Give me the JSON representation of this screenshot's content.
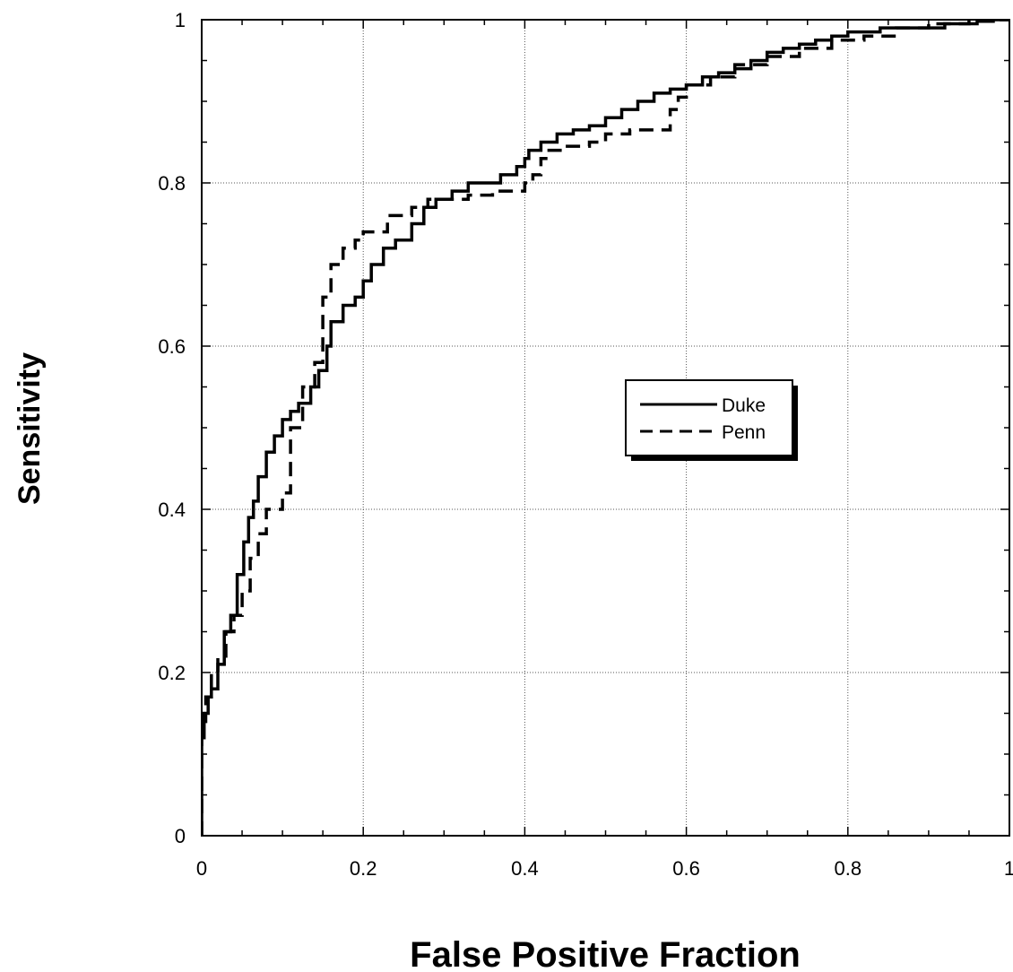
{
  "chart_data": {
    "type": "line",
    "title": "",
    "xlabel": "False Positive Fraction",
    "ylabel": "Sensitivity",
    "xlim": [
      0,
      1
    ],
    "ylim": [
      0,
      1
    ],
    "grid": true,
    "legend_position": "center-right",
    "x_ticks": [
      "0",
      "0.2",
      "0.4",
      "0.6",
      "0.8",
      "1"
    ],
    "y_ticks": [
      "0",
      "0.2",
      "0.4",
      "0.6",
      "0.8",
      "1"
    ],
    "series": [
      {
        "name": "Duke",
        "style": "solid",
        "color": "#000000",
        "x": [
          0,
          0,
          0.003,
          0.003,
          0.008,
          0.008,
          0.012,
          0.012,
          0.02,
          0.02,
          0.028,
          0.028,
          0.036,
          0.036,
          0.044,
          0.044,
          0.052,
          0.052,
          0.058,
          0.058,
          0.064,
          0.064,
          0.07,
          0.07,
          0.08,
          0.08,
          0.09,
          0.09,
          0.1,
          0.1,
          0.11,
          0.11,
          0.12,
          0.12,
          0.135,
          0.135,
          0.145,
          0.145,
          0.155,
          0.155,
          0.16,
          0.16,
          0.175,
          0.175,
          0.19,
          0.19,
          0.2,
          0.2,
          0.21,
          0.21,
          0.225,
          0.225,
          0.24,
          0.24,
          0.26,
          0.26,
          0.275,
          0.275,
          0.29,
          0.29,
          0.31,
          0.31,
          0.33,
          0.33,
          0.35,
          0.35,
          0.37,
          0.37,
          0.39,
          0.39,
          0.4,
          0.4,
          0.405,
          0.405,
          0.42,
          0.42,
          0.44,
          0.44,
          0.46,
          0.46,
          0.48,
          0.48,
          0.5,
          0.5,
          0.52,
          0.52,
          0.54,
          0.54,
          0.56,
          0.56,
          0.58,
          0.58,
          0.6,
          0.6,
          0.62,
          0.62,
          0.64,
          0.64,
          0.66,
          0.66,
          0.68,
          0.68,
          0.7,
          0.7,
          0.72,
          0.72,
          0.74,
          0.74,
          0.76,
          0.76,
          0.78,
          0.78,
          0.8,
          0.8,
          0.84,
          0.84,
          0.88,
          0.88,
          0.92,
          0.92,
          0.96,
          0.96,
          0.98,
          0.98,
          1.0
        ],
        "y": [
          0,
          0.12,
          0.12,
          0.15,
          0.15,
          0.17,
          0.17,
          0.18,
          0.18,
          0.21,
          0.21,
          0.25,
          0.25,
          0.27,
          0.27,
          0.32,
          0.32,
          0.36,
          0.36,
          0.39,
          0.39,
          0.41,
          0.41,
          0.44,
          0.44,
          0.47,
          0.47,
          0.49,
          0.49,
          0.51,
          0.51,
          0.52,
          0.52,
          0.53,
          0.53,
          0.55,
          0.55,
          0.57,
          0.57,
          0.6,
          0.6,
          0.63,
          0.63,
          0.65,
          0.65,
          0.66,
          0.66,
          0.68,
          0.68,
          0.7,
          0.7,
          0.72,
          0.72,
          0.73,
          0.73,
          0.75,
          0.75,
          0.77,
          0.77,
          0.78,
          0.78,
          0.79,
          0.79,
          0.8,
          0.8,
          0.8,
          0.8,
          0.81,
          0.81,
          0.82,
          0.82,
          0.83,
          0.83,
          0.84,
          0.84,
          0.85,
          0.85,
          0.86,
          0.86,
          0.865,
          0.865,
          0.87,
          0.87,
          0.88,
          0.88,
          0.89,
          0.89,
          0.9,
          0.9,
          0.91,
          0.91,
          0.915,
          0.915,
          0.92,
          0.92,
          0.93,
          0.93,
          0.935,
          0.935,
          0.94,
          0.94,
          0.95,
          0.95,
          0.96,
          0.96,
          0.965,
          0.965,
          0.97,
          0.97,
          0.975,
          0.975,
          0.98,
          0.98,
          0.985,
          0.985,
          0.99,
          0.99,
          0.99,
          0.99,
          0.995,
          0.995,
          0.998,
          0.998,
          1.0,
          1.0
        ]
      },
      {
        "name": "Penn",
        "style": "dashed",
        "color": "#000000",
        "x": [
          0,
          0,
          0.005,
          0.005,
          0.012,
          0.012,
          0.02,
          0.02,
          0.03,
          0.03,
          0.04,
          0.04,
          0.05,
          0.05,
          0.06,
          0.06,
          0.07,
          0.07,
          0.08,
          0.08,
          0.1,
          0.1,
          0.11,
          0.11,
          0.125,
          0.125,
          0.14,
          0.14,
          0.15,
          0.15,
          0.16,
          0.16,
          0.175,
          0.175,
          0.19,
          0.19,
          0.2,
          0.2,
          0.23,
          0.23,
          0.26,
          0.26,
          0.28,
          0.28,
          0.3,
          0.3,
          0.33,
          0.33,
          0.36,
          0.36,
          0.4,
          0.4,
          0.41,
          0.41,
          0.42,
          0.42,
          0.43,
          0.43,
          0.45,
          0.45,
          0.48,
          0.48,
          0.5,
          0.5,
          0.53,
          0.53,
          0.58,
          0.58,
          0.59,
          0.59,
          0.6,
          0.6,
          0.63,
          0.63,
          0.66,
          0.66,
          0.7,
          0.7,
          0.74,
          0.74,
          0.78,
          0.78,
          0.82,
          0.82,
          0.86,
          0.86,
          0.9,
          0.9,
          0.95,
          0.95,
          1.0
        ],
        "y": [
          0,
          0.14,
          0.14,
          0.17,
          0.17,
          0.2,
          0.2,
          0.22,
          0.22,
          0.25,
          0.25,
          0.27,
          0.27,
          0.3,
          0.3,
          0.34,
          0.34,
          0.37,
          0.37,
          0.4,
          0.4,
          0.42,
          0.42,
          0.5,
          0.5,
          0.55,
          0.55,
          0.58,
          0.58,
          0.66,
          0.66,
          0.7,
          0.7,
          0.72,
          0.72,
          0.73,
          0.73,
          0.74,
          0.74,
          0.76,
          0.76,
          0.77,
          0.77,
          0.78,
          0.78,
          0.78,
          0.78,
          0.785,
          0.785,
          0.79,
          0.79,
          0.8,
          0.8,
          0.81,
          0.81,
          0.83,
          0.83,
          0.84,
          0.84,
          0.845,
          0.845,
          0.85,
          0.85,
          0.86,
          0.86,
          0.865,
          0.865,
          0.89,
          0.89,
          0.905,
          0.905,
          0.92,
          0.92,
          0.93,
          0.93,
          0.945,
          0.945,
          0.955,
          0.955,
          0.965,
          0.965,
          0.975,
          0.975,
          0.98,
          0.98,
          0.99,
          0.99,
          0.995,
          0.995,
          1.0,
          1.0
        ]
      }
    ]
  }
}
